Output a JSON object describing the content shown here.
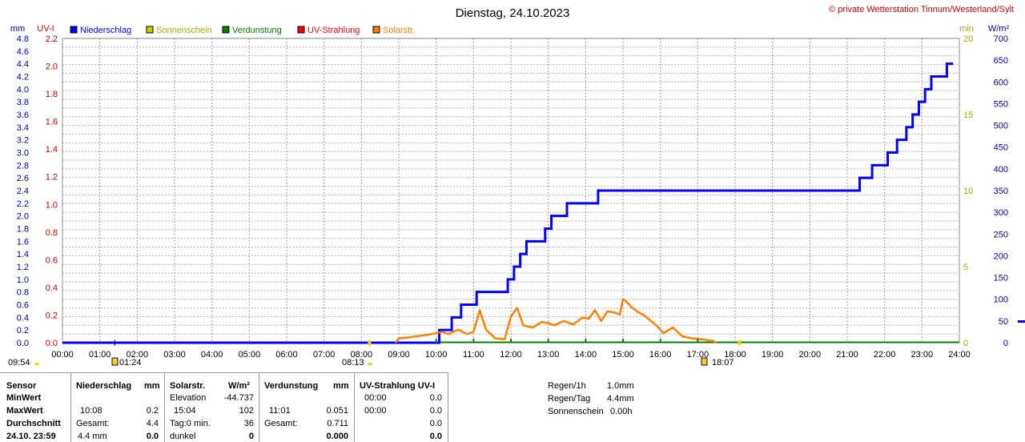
{
  "chart_data": {
    "type": "line",
    "title": "Dienstag, 24.10.2023",
    "copyright": "© private Wetterstation Tinnum/Westerland/Sylt",
    "axes": {
      "left_outer_label": "mm",
      "left_inner_label": "UV-I",
      "right_inner_label": "min",
      "right_outer_label": "W/m²",
      "mm_ticks": [
        "4.8",
        "4.6",
        "4.4",
        "4.2",
        "4.0",
        "3.8",
        "3.6",
        "3.4",
        "3.2",
        "3.0",
        "2.8",
        "2.6",
        "2.4",
        "2.2",
        "2.0",
        "1.8",
        "1.6",
        "1.4",
        "1.2",
        "1.0",
        "0.8",
        "0.6",
        "0.4",
        "0.2",
        "0.0"
      ],
      "uv_ticks": [
        "2.2",
        "2.0",
        "1.8",
        "1.6",
        "1.4",
        "1.2",
        "1.0",
        "0.8",
        "0.6",
        "0.4",
        "0.2",
        "0.0"
      ],
      "min_ticks": [
        "20",
        "15",
        "10",
        "5",
        "0"
      ],
      "wm2_ticks": [
        "700",
        "650",
        "600",
        "550",
        "500",
        "450",
        "400",
        "350",
        "300",
        "250",
        "200",
        "150",
        "100",
        "50",
        "0"
      ],
      "x_ticks": [
        "00:00",
        "01:00",
        "02:00",
        "03:00",
        "04:00",
        "05:00",
        "06:00",
        "07:00",
        "08:00",
        "09:00",
        "10:00",
        "11:00",
        "12:00",
        "13:00",
        "14:00",
        "15:00",
        "16:00",
        "17:00",
        "18:00",
        "19:00",
        "20:00",
        "21:00",
        "22:00",
        "23:00",
        "24:00"
      ],
      "mm_range": [
        0,
        4.8
      ],
      "wm2_range": [
        0,
        700
      ],
      "x_range_hours": [
        0,
        24
      ],
      "grid": true
    },
    "legend": [
      {
        "name": "Niederschlag",
        "color": "#0000ff"
      },
      {
        "name": "Sonnenschein",
        "color": "#cccc00"
      },
      {
        "name": "Verdunstung",
        "color": "#008000"
      },
      {
        "name": "UV-Strahlung",
        "color": "#ff0000"
      },
      {
        "name": "Solarstr.",
        "color": "#ff8000"
      }
    ],
    "series": [
      {
        "name": "Niederschlag",
        "color": "#0000ff",
        "unit": "mm",
        "x": [
          "10:05",
          "10:25",
          "10:40",
          "11:05",
          "11:55",
          "12:05",
          "12:15",
          "12:25",
          "12:55",
          "13:05",
          "13:30",
          "14:20",
          "21:20",
          "21:40",
          "22:05",
          "22:20",
          "22:35",
          "22:45",
          "22:55",
          "23:05",
          "23:15",
          "23:40",
          "23:50"
        ],
        "values": [
          0.2,
          0.4,
          0.6,
          0.8,
          1.0,
          1.2,
          1.4,
          1.6,
          1.8,
          2.0,
          2.2,
          2.4,
          2.6,
          2.8,
          3.0,
          3.2,
          3.4,
          3.6,
          3.8,
          4.0,
          4.2,
          4.4,
          4.4
        ]
      },
      {
        "name": "Solarstr.",
        "color": "#ff8000",
        "unit": "W/m²",
        "x": [
          "08:55",
          "09:00",
          "09:15",
          "09:30",
          "09:45",
          "10:00",
          "10:10",
          "10:20",
          "10:35",
          "10:50",
          "11:00",
          "11:10",
          "11:20",
          "11:35",
          "11:50",
          "12:00",
          "12:10",
          "12:20",
          "12:35",
          "12:50",
          "13:00",
          "13:10",
          "13:25",
          "13:40",
          "13:55",
          "14:05",
          "14:15",
          "14:25",
          "14:35",
          "14:45",
          "14:55",
          "15:00",
          "15:05",
          "15:15",
          "15:25",
          "15:35",
          "15:45",
          "15:55",
          "16:05",
          "16:20",
          "16:35",
          "16:50",
          "17:05",
          "17:15",
          "17:25",
          "17:30"
        ],
        "values": [
          0,
          10,
          12,
          15,
          18,
          22,
          25,
          20,
          30,
          20,
          25,
          75,
          30,
          10,
          8,
          60,
          80,
          40,
          35,
          48,
          45,
          40,
          50,
          42,
          58,
          55,
          75,
          50,
          72,
          70,
          65,
          100,
          95,
          80,
          70,
          62,
          50,
          38,
          22,
          35,
          15,
          10,
          8,
          6,
          4,
          0
        ]
      }
    ]
  },
  "markers": {
    "sunrise_label_left": "09:54",
    "moon_time": "01:24",
    "sunrise_time": "08:13",
    "sunset_time": "18:07"
  },
  "table": {
    "col_sensor": {
      "header": "Sensor",
      "rows": [
        "MinWert",
        "MaxWert",
        "Durchschnitt",
        "24.10. 23:59"
      ]
    },
    "col_niederschlag": {
      "header": "Niederschlag",
      "unit": "mm",
      "row1_time": "10:08",
      "row1_val": "0.2",
      "row2_label": "Gesamt:",
      "row2_val": "4.4",
      "row3_label": "4.4 mm",
      "row3_val": "0.0"
    },
    "col_solar": {
      "header": "Solarstr.",
      "unit": "W/m²",
      "row0_label": "Elevation",
      "row0_val": "-44.737",
      "row1_time": "15:04",
      "row1_val": "102",
      "row2_label": "Tag:0 min.",
      "row2_val": "36",
      "row3_label": "dunkel",
      "row3_val": "0"
    },
    "col_verdunstung": {
      "header": "Verdunstung",
      "unit": "mm",
      "row1_time": "11:01",
      "row1_val": "0.051",
      "row2_label": "Gesamt:",
      "row2_val": "0.711",
      "row3_val": "0.000"
    },
    "col_uv": {
      "header": "UV-Strahlung UV-I",
      "row0_time": "00:00",
      "row0_val": "0.0",
      "row1_time": "00:00",
      "row1_val": "0.0",
      "row2_val": "0.0",
      "row3_val": "0.0"
    },
    "summary": [
      {
        "label": "Regen/1h",
        "value": "1.0mm"
      },
      {
        "label": "Regen/Tag",
        "value": "4.4mm"
      },
      {
        "label": "Sonnenschein",
        "value": "0.00h"
      }
    ]
  }
}
